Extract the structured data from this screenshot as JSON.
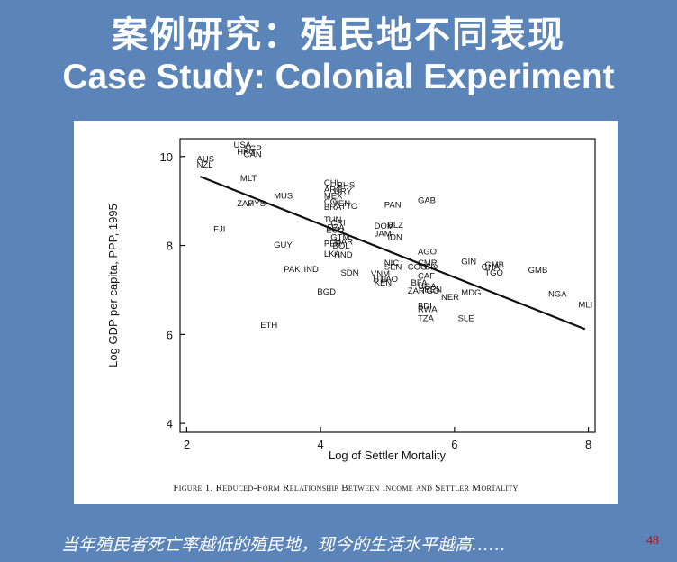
{
  "slide": {
    "title_cn": "案例研究：殖民地不同表现",
    "title_en": "Case Study: Colonial Experiment",
    "bottom_text": "当年殖民者死亡率越低的殖民地，现今的生活水平越高……",
    "page_number": "48",
    "background_color": "#5b84b8"
  },
  "figure": {
    "caption_number": "Figure 1.",
    "caption_text": "Reduced-Form Relationship Between Income and Settler Mortality"
  },
  "chart_data": {
    "type": "scatter",
    "title": "",
    "xlabel": "Log of Settler Mortality",
    "ylabel": "Log GDP per capita, PPP, 1995",
    "xlim": [
      1.9,
      8.1
    ],
    "ylim": [
      3.8,
      10.4
    ],
    "xticks": [
      2,
      4,
      6,
      8
    ],
    "yticks": [
      4,
      6,
      8,
      10
    ],
    "grid": false,
    "fit_line": {
      "x": [
        2.2,
        7.95
      ],
      "y": [
        9.55,
        6.12
      ]
    },
    "points": [
      {
        "label": "USA",
        "x": 2.7,
        "y": 10.2
      },
      {
        "label": "SGP",
        "x": 2.85,
        "y": 10.12
      },
      {
        "label": "HKG",
        "x": 2.75,
        "y": 10.05
      },
      {
        "label": "CAN",
        "x": 2.85,
        "y": 9.98
      },
      {
        "label": "AUS",
        "x": 2.15,
        "y": 9.88
      },
      {
        "label": "NZL",
        "x": 2.15,
        "y": 9.75
      },
      {
        "label": "MLT",
        "x": 2.8,
        "y": 9.45
      },
      {
        "label": "MUS",
        "x": 3.3,
        "y": 9.05
      },
      {
        "label": "ZAF",
        "x": 2.75,
        "y": 8.88
      },
      {
        "label": "MYS",
        "x": 2.9,
        "y": 8.88
      },
      {
        "label": "FJI",
        "x": 2.4,
        "y": 8.3
      },
      {
        "label": "GUY",
        "x": 3.3,
        "y": 7.95
      },
      {
        "label": "PAK",
        "x": 3.45,
        "y": 7.4
      },
      {
        "label": "IND",
        "x": 3.75,
        "y": 7.4
      },
      {
        "label": "BGD",
        "x": 3.95,
        "y": 6.9
      },
      {
        "label": "ETH",
        "x": 3.1,
        "y": 6.15
      },
      {
        "label": "CHL",
        "x": 4.05,
        "y": 9.35
      },
      {
        "label": "BHS",
        "x": 4.25,
        "y": 9.3
      },
      {
        "label": "ARG",
        "x": 4.05,
        "y": 9.2
      },
      {
        "label": "URY",
        "x": 4.2,
        "y": 9.15
      },
      {
        "label": "MEX",
        "x": 4.05,
        "y": 9.05
      },
      {
        "label": "COL",
        "x": 4.05,
        "y": 8.92
      },
      {
        "label": "VEN",
        "x": 4.18,
        "y": 8.88
      },
      {
        "label": "BRA",
        "x": 4.05,
        "y": 8.8
      },
      {
        "label": "TTO",
        "x": 4.3,
        "y": 8.82
      },
      {
        "label": "PAN",
        "x": 4.95,
        "y": 8.85
      },
      {
        "label": "GAB",
        "x": 5.45,
        "y": 8.95
      },
      {
        "label": "TUN",
        "x": 4.05,
        "y": 8.52
      },
      {
        "label": "CRI",
        "x": 4.15,
        "y": 8.45
      },
      {
        "label": "DZA",
        "x": 4.1,
        "y": 8.35
      },
      {
        "label": "ECU",
        "x": 4.08,
        "y": 8.28
      },
      {
        "label": "DOM",
        "x": 4.8,
        "y": 8.38
      },
      {
        "label": "BLZ",
        "x": 5.0,
        "y": 8.4
      },
      {
        "label": "JAM",
        "x": 4.8,
        "y": 8.2
      },
      {
        "label": "IDN",
        "x": 5.0,
        "y": 8.12
      },
      {
        "label": "GTM",
        "x": 4.15,
        "y": 8.12
      },
      {
        "label": "MAR",
        "x": 4.2,
        "y": 8.02
      },
      {
        "label": "PER",
        "x": 4.05,
        "y": 7.98
      },
      {
        "label": "BOL",
        "x": 4.18,
        "y": 7.93
      },
      {
        "label": "LKA",
        "x": 4.05,
        "y": 7.75
      },
      {
        "label": "HND",
        "x": 4.2,
        "y": 7.73
      },
      {
        "label": "SDN",
        "x": 4.3,
        "y": 7.32
      },
      {
        "label": "AGO",
        "x": 5.45,
        "y": 7.8
      },
      {
        "label": "NIC",
        "x": 4.95,
        "y": 7.55
      },
      {
        "label": "SEN",
        "x": 4.95,
        "y": 7.45
      },
      {
        "label": "CMR",
        "x": 5.45,
        "y": 7.55
      },
      {
        "label": "COG",
        "x": 5.3,
        "y": 7.45
      },
      {
        "label": "CIV",
        "x": 5.55,
        "y": 7.45
      },
      {
        "label": "VNM",
        "x": 4.75,
        "y": 7.3
      },
      {
        "label": "HTI",
        "x": 4.78,
        "y": 7.18
      },
      {
        "label": "LAO",
        "x": 4.9,
        "y": 7.18
      },
      {
        "label": "KEN",
        "x": 4.8,
        "y": 7.1
      },
      {
        "label": "CAF",
        "x": 5.45,
        "y": 7.25
      },
      {
        "label": "BFA",
        "x": 5.35,
        "y": 7.1
      },
      {
        "label": "UGA",
        "x": 5.45,
        "y": 7.02
      },
      {
        "label": "ZAR",
        "x": 5.3,
        "y": 6.92
      },
      {
        "label": "TGO",
        "x": 5.5,
        "y": 6.92
      },
      {
        "label": "BEN",
        "x": 5.55,
        "y": 6.95
      },
      {
        "label": "NER",
        "x": 5.8,
        "y": 6.78
      },
      {
        "label": "MDG",
        "x": 6.1,
        "y": 6.88
      },
      {
        "label": "BDI",
        "x": 5.45,
        "y": 6.58
      },
      {
        "label": "RWA",
        "x": 5.45,
        "y": 6.5
      },
      {
        "label": "TZA",
        "x": 5.45,
        "y": 6.3
      },
      {
        "label": "SLE",
        "x": 6.05,
        "y": 6.3
      },
      {
        "label": "GIN",
        "x": 6.1,
        "y": 7.58
      },
      {
        "label": "GHA",
        "x": 6.4,
        "y": 7.45
      },
      {
        "label": "GMB",
        "x": 6.45,
        "y": 7.5
      },
      {
        "label": "TGO",
        "x": 6.45,
        "y": 7.32
      },
      {
        "label": "GMB",
        "x": 7.1,
        "y": 7.38
      },
      {
        "label": "NGA",
        "x": 7.4,
        "y": 6.85
      },
      {
        "label": "MLI",
        "x": 7.85,
        "y": 6.6
      }
    ]
  }
}
